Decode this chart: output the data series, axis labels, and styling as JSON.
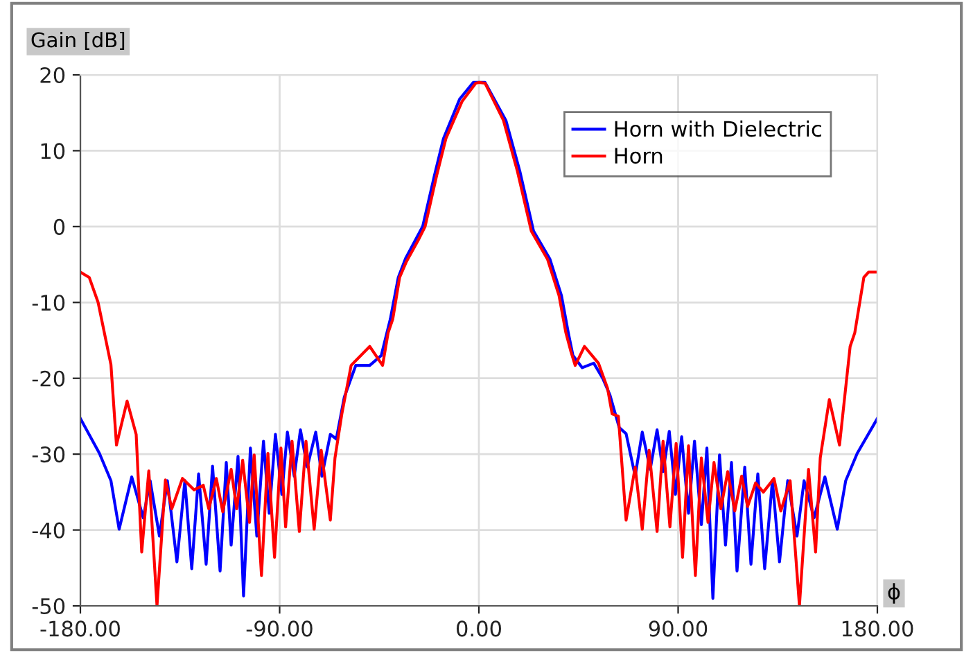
{
  "chart_data": {
    "type": "line",
    "xlabel": "ϕ",
    "ylabel": "Gain [dB]",
    "xlim": [
      -180,
      180
    ],
    "ylim": [
      -50,
      20
    ],
    "xticks": [
      {
        "value": -180,
        "label": "-180.00"
      },
      {
        "value": -90,
        "label": "-90.00"
      },
      {
        "value": 0,
        "label": "0.00"
      },
      {
        "value": 90,
        "label": "90.00"
      },
      {
        "value": 180,
        "label": "180.00"
      }
    ],
    "yticks": [
      -50,
      -40,
      -30,
      -20,
      -10,
      0,
      10,
      20
    ],
    "grid": true,
    "legend": "top right",
    "marker": "none",
    "line_style": "solid",
    "series": [
      {
        "name": "Horn with Dielectric",
        "color": "#0000ff",
        "x": [
          -180,
          -171.4,
          -166.2,
          -162.5,
          -156.8,
          -151.6,
          -148.5,
          -144.3,
          -140.7,
          -136.4,
          -132.8,
          -129.7,
          -126.6,
          -123.2,
          -120.3,
          -116.9,
          -114.1,
          -111.9,
          -108.8,
          -106.3,
          -103.2,
          -100.3,
          -97.3,
          -94.7,
          -91.9,
          -89,
          -86.5,
          -83.4,
          -80.6,
          -77.5,
          -73.7,
          -70.9,
          -67.1,
          -64.4,
          -60.8,
          -55.6,
          -49.3,
          -44.1,
          -40,
          -36.4,
          -33.1,
          -25.4,
          -20.1,
          -16,
          -8.7,
          -2.5,
          0,
          2.8,
          12.2,
          18.5,
          24.7,
          32.1,
          37.3,
          40.4,
          42.5,
          46.7,
          51.9,
          56.1,
          59.2,
          63.4,
          66.5,
          70.6,
          73.8,
          77.4,
          80.5,
          83.2,
          86,
          88.8,
          91.6,
          94.7,
          97.4,
          100.5,
          103,
          105.7,
          108.7,
          111.4,
          114.1,
          116.6,
          120.1,
          122.9,
          126,
          129.1,
          132.6,
          135.8,
          139.5,
          143.7,
          146.9,
          151.4,
          156.3,
          161.9,
          165.7,
          170.9,
          180
        ],
        "values": [
          -25.3,
          -29.9,
          -33.5,
          -39.9,
          -33,
          -38.4,
          -33.5,
          -40.8,
          -33.5,
          -44.2,
          -33.5,
          -45.1,
          -32.6,
          -44.5,
          -31.6,
          -45.4,
          -31.1,
          -42,
          -30.3,
          -48.7,
          -29.2,
          -40.8,
          -28.3,
          -37.8,
          -27.4,
          -35.3,
          -27.1,
          -32.9,
          -26.8,
          -31.7,
          -27.1,
          -32.9,
          -27.4,
          -28,
          -22.5,
          -18.3,
          -18.3,
          -17,
          -12.2,
          -6.7,
          -4.2,
          0,
          6.7,
          11.6,
          16.8,
          19,
          19,
          19,
          14,
          7.3,
          -0.6,
          -4.3,
          -9.1,
          -14,
          -17,
          -18.6,
          -18,
          -20.1,
          -22.2,
          -26.5,
          -27.3,
          -32.9,
          -27.1,
          -32,
          -26.8,
          -32.3,
          -27,
          -35.3,
          -27.7,
          -37.8,
          -28.3,
          -39.3,
          -29.2,
          -49,
          -30.1,
          -42,
          -31.1,
          -45.4,
          -31.7,
          -44.5,
          -32.6,
          -45.1,
          -33.5,
          -44.2,
          -33.5,
          -40.8,
          -33.5,
          -38.4,
          -33,
          -39.9,
          -33.5,
          -29.9,
          -25.3
        ]
      },
      {
        "name": "Horn",
        "color": "#ff0000",
        "x": [
          -180,
          -176,
          -172,
          -166.2,
          -163.7,
          -158.9,
          -154.8,
          -152.3,
          -149.1,
          -145.4,
          -141.6,
          -138.7,
          -133.9,
          -128.7,
          -124.5,
          -122,
          -118.6,
          -115.7,
          -111.9,
          -109.4,
          -106.7,
          -103.6,
          -101.5,
          -98.2,
          -95.3,
          -92.3,
          -89.4,
          -87.3,
          -84.4,
          -81.1,
          -78.1,
          -74.4,
          -71.2,
          -67.1,
          -65,
          -61.9,
          -57.7,
          -49.3,
          -43.5,
          -41,
          -38.9,
          -35.8,
          -32.7,
          -27.4,
          -24.3,
          -19.1,
          -14.9,
          -7.6,
          -1.4,
          0,
          2.8,
          11.1,
          17.4,
          23.7,
          31,
          36.2,
          39.3,
          41.5,
          43.5,
          47.7,
          54,
          58.1,
          60.2,
          63,
          66.5,
          70.6,
          73.8,
          76.9,
          80.5,
          83.2,
          86.3,
          89.1,
          92,
          94.7,
          97.8,
          100.5,
          103.5,
          106.2,
          109.3,
          112.4,
          115.6,
          118.7,
          121.4,
          125,
          128.5,
          133.3,
          136.4,
          140.6,
          144.8,
          148.9,
          152.1,
          154.2,
          158.3,
          162.9,
          167.7,
          169.8,
          173.9,
          176,
          180
        ],
        "values": [
          -6,
          -6.7,
          -10,
          -18.2,
          -28.8,
          -23,
          -27.4,
          -42.9,
          -32.2,
          -50,
          -33.4,
          -37.2,
          -33.2,
          -34.7,
          -34.1,
          -37.2,
          -33.2,
          -37.6,
          -32,
          -37.2,
          -30.8,
          -39,
          -30.1,
          -46,
          -29.9,
          -43.6,
          -29.2,
          -39.6,
          -28.3,
          -40.2,
          -28.3,
          -39.9,
          -29.5,
          -38.7,
          -30.5,
          -24.7,
          -18.3,
          -15.8,
          -18.3,
          -14,
          -12.2,
          -6.7,
          -4.6,
          -1.8,
          0,
          6.7,
          11.6,
          16.5,
          18.9,
          19,
          18.9,
          14,
          7.3,
          -0.6,
          -4.3,
          -9.1,
          -14,
          -16.4,
          -18.3,
          -15.8,
          -18,
          -21.3,
          -24.7,
          -25,
          -38.7,
          -31.7,
          -39.9,
          -29.5,
          -40.2,
          -28.3,
          -39.6,
          -28.6,
          -43.6,
          -28.9,
          -46,
          -30.5,
          -39,
          -31.1,
          -37.2,
          -32.3,
          -37.5,
          -32.9,
          -36.9,
          -33.8,
          -35,
          -33.2,
          -37.5,
          -33.5,
          -50,
          -32,
          -42.9,
          -30.5,
          -22.8,
          -28.8,
          -15.8,
          -14,
          -6.7,
          -6,
          -6
        ]
      }
    ]
  }
}
